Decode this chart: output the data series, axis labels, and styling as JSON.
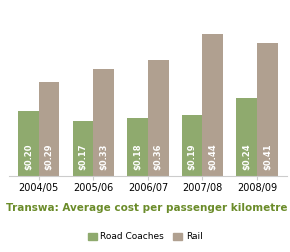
{
  "years": [
    "2004/05",
    "2005/06",
    "2006/07",
    "2007/08",
    "2008/09"
  ],
  "road_coaches": [
    0.2,
    0.17,
    0.18,
    0.19,
    0.24
  ],
  "rail": [
    0.29,
    0.33,
    0.36,
    0.44,
    0.41
  ],
  "road_color": "#8faa6e",
  "rail_color": "#b0a090",
  "title": "Transwa: Average cost per passenger kilometre",
  "title_color": "#6b8c2a",
  "legend_road": "Road Coaches",
  "legend_rail": "Rail",
  "bar_width": 0.38,
  "ylim": [
    0,
    0.52
  ],
  "label_fontsize": 6.0,
  "label_color": "#ffffff",
  "title_fontsize": 7.5,
  "xtick_fontsize": 7.0,
  "legend_fontsize": 6.5,
  "background_color": "#ffffff"
}
